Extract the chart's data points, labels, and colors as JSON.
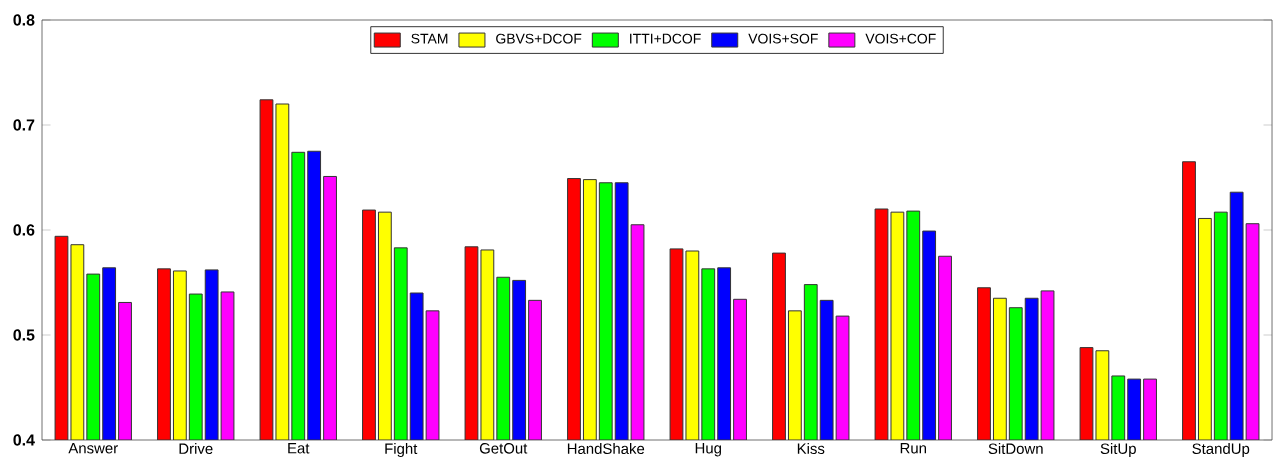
{
  "chart_data": {
    "type": "bar",
    "categories": [
      "Answer",
      "Drive",
      "Eat",
      "Fight",
      "GetOut",
      "HandShake",
      "Hug",
      "Kiss",
      "Run",
      "SitDown",
      "SitUp",
      "StandUp"
    ],
    "series": [
      {
        "name": "STAM",
        "color": "#ff0000",
        "values": [
          0.594,
          0.563,
          0.724,
          0.619,
          0.584,
          0.649,
          0.582,
          0.578,
          0.62,
          0.545,
          0.488,
          0.665
        ]
      },
      {
        "name": "GBVS+DCOF",
        "color": "#ffff00",
        "values": [
          0.586,
          0.561,
          0.72,
          0.617,
          0.581,
          0.648,
          0.58,
          0.523,
          0.617,
          0.535,
          0.485,
          0.611
        ]
      },
      {
        "name": "ITTI+DCOF",
        "color": "#00ff00",
        "values": [
          0.558,
          0.539,
          0.674,
          0.583,
          0.555,
          0.645,
          0.563,
          0.548,
          0.618,
          0.526,
          0.461,
          0.617
        ]
      },
      {
        "name": "VOIS+SOF",
        "color": "#0000ff",
        "values": [
          0.564,
          0.562,
          0.675,
          0.54,
          0.552,
          0.645,
          0.564,
          0.533,
          0.599,
          0.535,
          0.458,
          0.636
        ]
      },
      {
        "name": "VOIS+COF",
        "color": "#ff00ff",
        "values": [
          0.531,
          0.541,
          0.651,
          0.523,
          0.533,
          0.605,
          0.534,
          0.518,
          0.575,
          0.542,
          0.458,
          0.606
        ]
      }
    ],
    "ylim": [
      0.4,
      0.8
    ],
    "yticks": [
      0.4,
      0.5,
      0.6,
      0.7,
      0.8
    ],
    "legend": "top",
    "grid": false
  }
}
